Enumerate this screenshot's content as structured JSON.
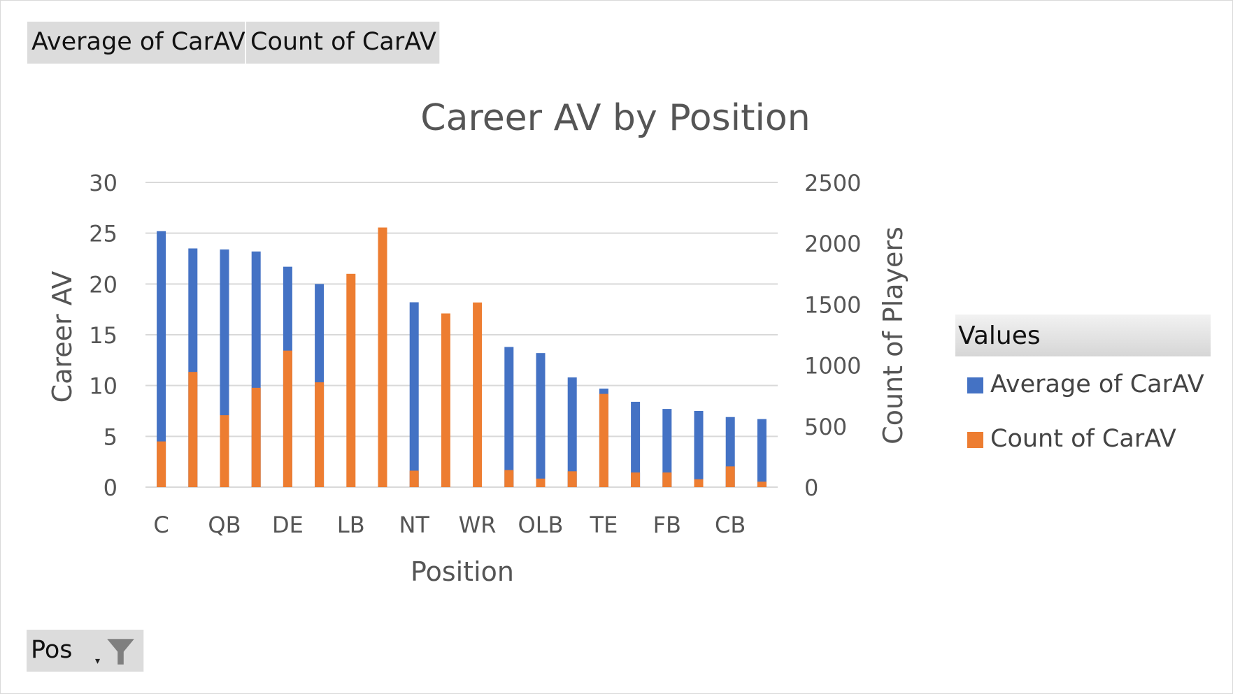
{
  "buttons": {
    "average": "Average  of CarAV",
    "count": "Count of CarAV",
    "pos": "Pos"
  },
  "legend": {
    "header": "Values",
    "items": [
      {
        "label": "Average of CarAV",
        "color": "#4472C4"
      },
      {
        "label": "Count of CarAV",
        "color": "#ED7D31"
      }
    ]
  },
  "colors": {
    "average": "#4472C4",
    "count": "#ED7D31",
    "grid": "#d9d9d9"
  },
  "chart_data": {
    "type": "bar",
    "title": "Career AV by Position",
    "xlabel": "Position",
    "ylabel": "Career AV",
    "y2label": "Count of Players",
    "ylim": [
      0,
      30
    ],
    "y2lim": [
      0,
      2500
    ],
    "yticks": [
      "0",
      "5",
      "10",
      "15",
      "20",
      "25",
      "30"
    ],
    "y2ticks": [
      "0",
      "500",
      "1000",
      "1500",
      "2000",
      "2500"
    ],
    "categories": [
      "C",
      "",
      "QB",
      "",
      "DE",
      "",
      "LB",
      "",
      "NT",
      "",
      "WR",
      "",
      "OLB",
      "",
      "TE",
      "",
      "FB",
      "",
      "CB",
      ""
    ],
    "series": [
      {
        "name": "Average of CarAV",
        "axis": "left",
        "values": [
          25.2,
          23.5,
          23.4,
          23.2,
          21.7,
          20.0,
          null,
          null,
          18.2,
          null,
          null,
          13.8,
          13.2,
          10.8,
          9.7,
          8.4,
          7.7,
          7.5,
          6.9,
          6.7
        ]
      },
      {
        "name": "Count of CarAV",
        "axis": "right",
        "values": [
          375,
          945,
          590,
          815,
          1120,
          860,
          1750,
          2130,
          135,
          1425,
          1515,
          140,
          70,
          130,
          765,
          120,
          120,
          65,
          170,
          45
        ]
      }
    ]
  }
}
